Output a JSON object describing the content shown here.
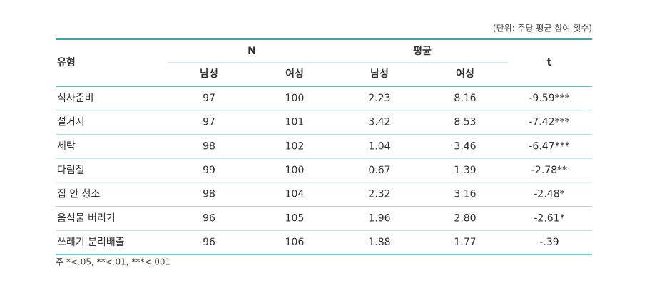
{
  "unit_note": "(단위: 주당 평균 참여 횟수)",
  "table": {
    "header": {
      "type": "유형",
      "n": "N",
      "mean": "평균",
      "t": "t",
      "sub": [
        "남성",
        "여성",
        "남성",
        "여성"
      ]
    },
    "rows": [
      [
        "식사준비",
        "97",
        "100",
        "2.23",
        "8.16",
        "-9.59***"
      ],
      [
        "설거지",
        "97",
        "101",
        "3.42",
        "8.53",
        "-7.42***"
      ],
      [
        "세탁",
        "98",
        "102",
        "1.04",
        "3.46",
        "-6.47***"
      ],
      [
        "다림질",
        "99",
        "100",
        "0.67",
        "1.39",
        "-2.78**"
      ],
      [
        "집 안 청소",
        "98",
        "104",
        "2.32",
        "3.16",
        "-2.48*"
      ],
      [
        "음식물 버리기",
        "96",
        "105",
        "1.96",
        "2.80",
        "-2.61*"
      ],
      [
        "쓰레기 분리배출",
        "96",
        "106",
        "1.88",
        "1.77",
        "-.39"
      ]
    ]
  },
  "footnote": "주  *<.05, **<.01, ***<.001"
}
